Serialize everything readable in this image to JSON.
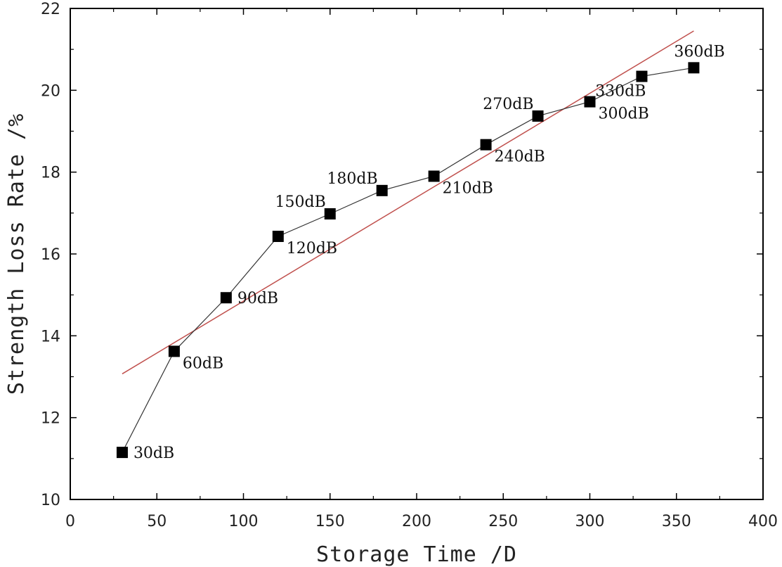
{
  "chart_data": {
    "type": "line",
    "title": "",
    "xlabel": "Storage Time /D",
    "ylabel": "Strength Loss Rate /%",
    "xlim": [
      0,
      400
    ],
    "ylim": [
      10,
      22
    ],
    "xticks": [
      0,
      50,
      100,
      150,
      200,
      250,
      300,
      350,
      400
    ],
    "yticks": [
      10,
      12,
      14,
      16,
      18,
      20,
      22
    ],
    "grid": false,
    "series": [
      {
        "name": "Strength Loss Rate",
        "marker": "square",
        "color": "#000000",
        "x": [
          30,
          60,
          90,
          120,
          150,
          180,
          210,
          240,
          270,
          300,
          330,
          360
        ],
        "y": [
          11.15,
          13.62,
          14.93,
          16.43,
          16.98,
          17.55,
          17.9,
          18.67,
          19.37,
          19.72,
          20.34,
          20.55
        ],
        "labels": [
          "30dB",
          "60dB",
          "90dB",
          "120dB",
          "150dB",
          "180dB",
          "210dB",
          "240dB",
          "270dB",
          "300dB",
          "330dB",
          "360dB"
        ],
        "label_positions": [
          "right",
          "right-below",
          "right",
          "right-below",
          "left-above",
          "left-above",
          "right-below",
          "right-below",
          "left-above",
          "right-below",
          "left-below",
          "right-above"
        ]
      },
      {
        "name": "Linear fit",
        "type": "line",
        "color": "#c0504d",
        "x": [
          30,
          360
        ],
        "y": [
          13.07,
          21.45
        ]
      }
    ]
  }
}
